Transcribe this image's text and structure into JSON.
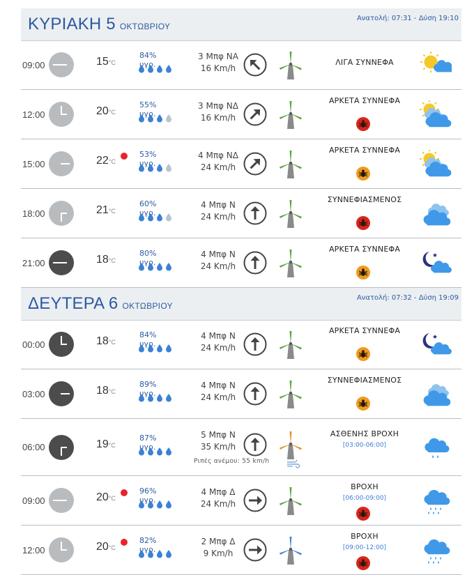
{
  "days": [
    {
      "name": "ΚΥΡΙΑΚΗ 5",
      "month": "ΟΚΤΩΒΡΙΟΥ",
      "sun_times": "Ανατολή: 07:31  - Δύση 19:10",
      "rows": [
        {
          "time": "09:00",
          "clock": "day",
          "temp": "15",
          "hum": "84% υγρ.",
          "drops": 4,
          "bft": "3 Μπφ ΝΑ",
          "speed": "16 Km/h",
          "arrow_deg": -45,
          "turbine": "green",
          "alert": false,
          "condition": "ΛΙΓΑ ΣΥΝΝΕΦΑ",
          "warn": "",
          "period": "",
          "gust": "",
          "icon": "sun-cloud"
        },
        {
          "time": "12:00",
          "clock": "day",
          "temp": "20",
          "hum": "55% υγρ.",
          "drops": 3,
          "bft": "3 Μπφ ΝΔ",
          "speed": "16 Km/h",
          "arrow_deg": 45,
          "turbine": "green",
          "alert": false,
          "condition": "ΑΡΚΕΤΑ ΣΥΝΝΕΦΑ",
          "warn": "red",
          "period": "",
          "gust": "",
          "icon": "sun-clouds"
        },
        {
          "time": "15:00",
          "clock": "day",
          "temp": "22",
          "hum": "53% υγρ.",
          "drops": 3,
          "bft": "4 Μπφ ΝΔ",
          "speed": "24 Km/h",
          "arrow_deg": 45,
          "turbine": "green",
          "alert": true,
          "condition": "ΑΡΚΕΤΑ ΣΥΝΝΕΦΑ",
          "warn": "orange",
          "period": "",
          "gust": "",
          "icon": "sun-clouds"
        },
        {
          "time": "18:00",
          "clock": "day",
          "temp": "21",
          "hum": "60% υγρ.",
          "drops": 3,
          "bft": "4 Μπφ Ν",
          "speed": "24 Km/h",
          "arrow_deg": 0,
          "turbine": "green",
          "alert": false,
          "condition": "ΣΥΝΝΕΦΙΑΣΜΕΝΟΣ",
          "warn": "red",
          "period": "",
          "gust": "",
          "icon": "clouds"
        },
        {
          "time": "21:00",
          "clock": "night",
          "temp": "18",
          "hum": "80% υγρ.",
          "drops": 4,
          "bft": "4 Μπφ Ν",
          "speed": "24 Km/h",
          "arrow_deg": 0,
          "turbine": "green",
          "alert": false,
          "condition": "ΑΡΚΕΤΑ ΣΥΝΝΕΦΑ",
          "warn": "orange",
          "period": "",
          "gust": "",
          "icon": "moon-cloud"
        }
      ]
    },
    {
      "name": "ΔΕΥΤΕΡΑ 6",
      "month": "ΟΚΤΩΒΡΙΟΥ",
      "sun_times": "Ανατολή: 07:32  - Δύση 19:09",
      "rows": [
        {
          "time": "00:00",
          "clock": "night",
          "temp": "18",
          "hum": "84% υγρ.",
          "drops": 4,
          "bft": "4 Μπφ Ν",
          "speed": "24 Km/h",
          "arrow_deg": 0,
          "turbine": "green",
          "alert": false,
          "condition": "ΑΡΚΕΤΑ ΣΥΝΝΕΦΑ",
          "warn": "orange",
          "period": "",
          "gust": "",
          "icon": "moon-cloud"
        },
        {
          "time": "03:00",
          "clock": "night",
          "temp": "18",
          "hum": "89% υγρ.",
          "drops": 4,
          "bft": "4 Μπφ Ν",
          "speed": "24 Km/h",
          "arrow_deg": 0,
          "turbine": "green",
          "alert": false,
          "condition": "ΣΥΝΝΕΦΙΑΣΜΕΝΟΣ",
          "warn": "orange",
          "period": "",
          "gust": "",
          "icon": "clouds"
        },
        {
          "time": "06:00",
          "clock": "night",
          "temp": "19",
          "hum": "87% υγρ.",
          "drops": 4,
          "bft": "5 Μπφ Ν",
          "speed": "35 Km/h",
          "arrow_deg": 0,
          "turbine": "orange",
          "alert": false,
          "condition": "ΑΣΘΕΝΗΣ ΒΡΟΧΗ",
          "warn": "",
          "period": "[03:00-06:00]",
          "gust": "Ριπές ανέμου: 55 km/h",
          "icon": "light-rain"
        },
        {
          "time": "09:00",
          "clock": "day",
          "temp": "20",
          "hum": "96% υγρ.",
          "drops": 4,
          "bft": "4 Μπφ Δ",
          "speed": "24 Km/h",
          "arrow_deg": 90,
          "turbine": "green",
          "alert": true,
          "condition": "ΒΡΟΧΗ",
          "warn": "red",
          "period": "[06:00-09:00]",
          "gust": "",
          "icon": "rain"
        },
        {
          "time": "12:00",
          "clock": "day",
          "temp": "20",
          "hum": "82% υγρ.",
          "drops": 4,
          "bft": "2 Μπφ Δ",
          "speed": "9 Km/h",
          "arrow_deg": 90,
          "turbine": "blue",
          "alert": true,
          "condition": "ΒΡΟΧΗ",
          "warn": "red",
          "period": "[09:00-12:00]",
          "gust": "",
          "icon": "rain"
        }
      ]
    }
  ],
  "temp_unit": "°C",
  "colors": {
    "header_text": "#2b5aa3",
    "drop_full": "#3b82d4",
    "drop_partial": "#b8c4d0",
    "alert": "#e8232d",
    "turbine_green": "#5aa53c",
    "turbine_orange": "#e8902a",
    "turbine_blue": "#3f88d6",
    "cloud": "#3f99e8",
    "sun": "#f5c82a"
  }
}
